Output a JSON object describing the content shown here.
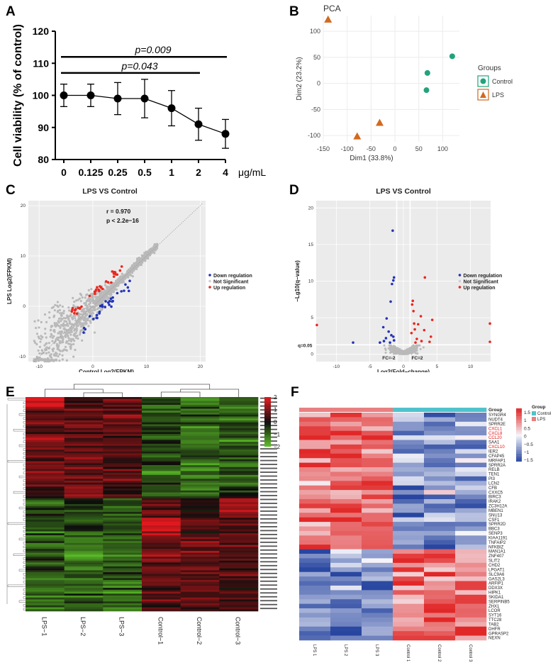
{
  "panels": {
    "a": "A",
    "b": "B",
    "c": "C",
    "d": "D",
    "e": "E",
    "f": "F"
  },
  "chart_data": [
    {
      "panel": "A",
      "type": "line",
      "categories": [
        "0",
        "0.125",
        "0.25",
        "0.5",
        "1",
        "2",
        "4"
      ],
      "values": [
        100,
        100,
        99,
        99,
        96,
        91,
        88
      ],
      "errors": [
        3.5,
        3.5,
        5,
        6,
        5.5,
        5,
        4.5
      ],
      "ylabel": "Cell viability (% of control)",
      "xunit": "μg/mL",
      "ylim": [
        80,
        120
      ],
      "yticks": [
        "80",
        "90",
        "100",
        "110",
        "120"
      ],
      "annotations": [
        {
          "text": "p=0.009",
          "from": "0",
          "to": "4",
          "y": 112
        },
        {
          "text": "p=0.043",
          "from": "0",
          "to": "2",
          "y": 107
        }
      ]
    },
    {
      "panel": "B",
      "type": "scatter",
      "title": "PCA",
      "xlabel": "Dim1 (33.8%)",
      "ylabel": "Dim2 (23.2%)",
      "xlim": [
        -150,
        135
      ],
      "ylim": [
        -112,
        130
      ],
      "xticks": [
        "-150",
        "-100",
        "-50",
        "0",
        "50",
        "100"
      ],
      "yticks": [
        "-100",
        "-50",
        "0",
        "50",
        "100"
      ],
      "legend_title": "Groups",
      "series": [
        {
          "name": "Control",
          "color": "#23a37c",
          "points": [
            [
              120,
              52
            ],
            [
              68,
              20
            ],
            [
              66,
              -13
            ]
          ]
        },
        {
          "name": "LPS",
          "color": "#d2691e",
          "points": [
            [
              -140,
              122
            ],
            [
              -32,
              -76
            ],
            [
              -79,
              -102
            ]
          ]
        }
      ]
    },
    {
      "panel": "C",
      "type": "scatter",
      "title": "LPS VS Control",
      "xlabel": "Control  Log2(FPKM)",
      "ylabel": "LPS  Log2(FPKM)",
      "xlim": [
        -12,
        21
      ],
      "ylim": [
        -11,
        21
      ],
      "xticks": [
        "-10",
        "0",
        "10",
        "20"
      ],
      "yticks": [
        "-10",
        "0",
        "10",
        "20"
      ],
      "stats": [
        "r =  0.970",
        "p < 2.2e−16"
      ],
      "legend": [
        "Down regulation",
        "Not Significant",
        "Up regulation"
      ]
    },
    {
      "panel": "D",
      "type": "scatter",
      "title": "LPS VS Control",
      "xlabel": "Log2(Fold−change)",
      "ylabel": "−Lg10(q−value)",
      "xlim": [
        -13,
        13
      ],
      "ylim": [
        -1,
        21
      ],
      "xticks": [
        "-10",
        "-5",
        "0",
        "5",
        "10"
      ],
      "yticks": [
        "0",
        "5",
        "10",
        "15",
        "20"
      ],
      "annotations": [
        "q=0.05",
        "FC=-2",
        "FC=2"
      ],
      "legend": [
        "Down regulation",
        "Not Significant",
        "Up regulation"
      ]
    },
    {
      "panel": "E",
      "type": "heatmap",
      "columns": [
        "LPS−1",
        "LPS−2",
        "LPS−3",
        "Control−1",
        "Control−2",
        "Control−3"
      ],
      "colorbar": [
        "2",
        "1",
        "0",
        "−1",
        "−2"
      ]
    },
    {
      "panel": "F",
      "type": "heatmap",
      "columns": [
        "LPS 1",
        "LPS 2",
        "LPS 3",
        "Control 1",
        "Control 2",
        "Control 3"
      ],
      "genes": [
        "SYNGR4",
        "NUDT4",
        "SPRR2E",
        "CXCL1",
        "CXCL8",
        "CCL20",
        "SAA1",
        "CXCL10",
        "IER2",
        "CFAP45",
        "MRFAP1",
        "SPRR2A",
        "RELB",
        "TEN1",
        "PI3",
        "LCN2",
        "CFB",
        "CXXC5",
        "BIRC3",
        "IRAK2",
        "ZC3H12A",
        "MBEN1",
        "SNU13",
        "CSF1",
        "SPRR2D",
        "BBC3",
        "SENP3",
        "KIAA1191",
        "TNFAIP2",
        "NFKBIZ",
        "MAN1A1",
        "ZNF407",
        "SLIT2",
        "CHD2",
        "LPGAT1",
        "SLC9A6",
        "GAS2L3",
        "ARFIP1",
        "DDX3X",
        "HIPK1",
        "SKIDA1",
        "SERPINB5",
        "ZHX1",
        "LCOR",
        "SYT16",
        "TTC28",
        "TAB2",
        "DHFR",
        "GPRASP2",
        "NEXN"
      ],
      "highlight": [
        "CXCL1",
        "CXCL8",
        "CCL20",
        "CXCL10"
      ],
      "group_label": "Group",
      "groups": [
        "Control",
        "LPS"
      ],
      "colorbar": [
        "1.5",
        "1",
        "0.5",
        "0",
        "−0.5",
        "−1",
        "−1.5"
      ]
    }
  ]
}
